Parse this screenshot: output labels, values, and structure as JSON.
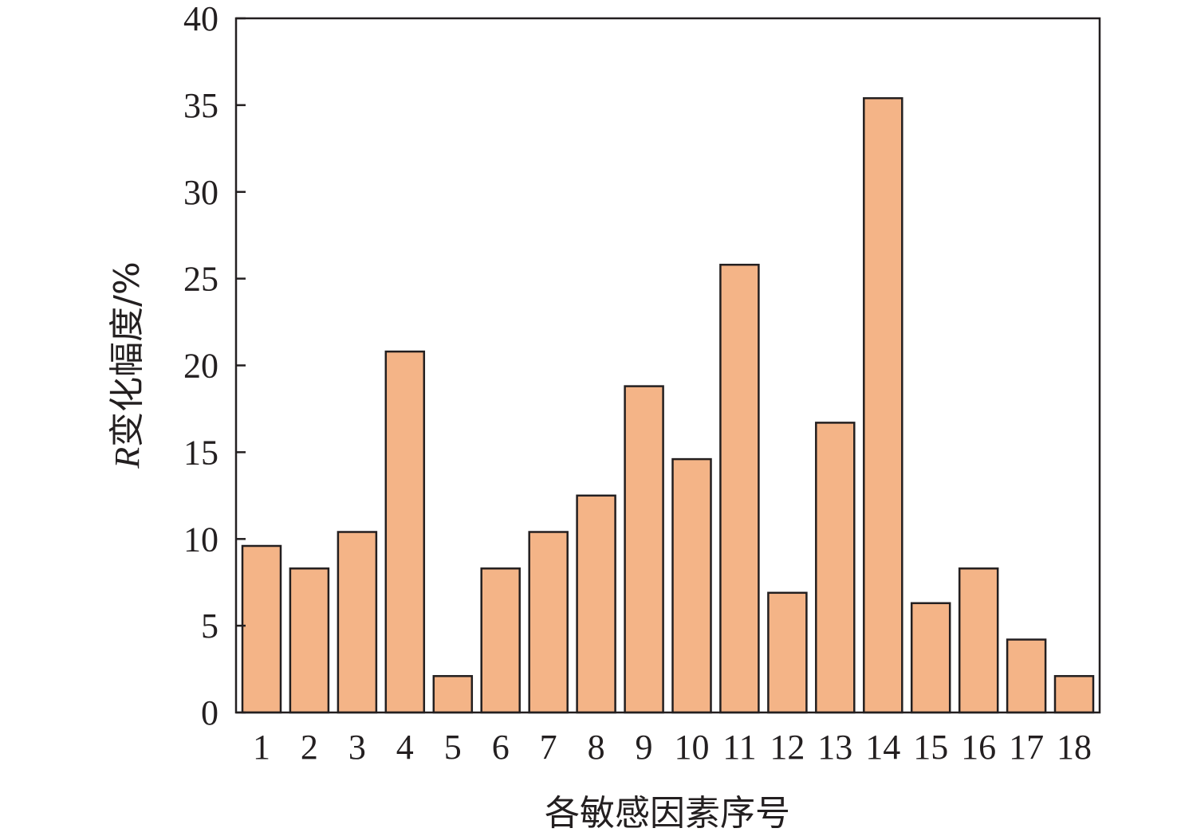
{
  "chart_data": {
    "type": "bar",
    "categories": [
      "1",
      "2",
      "3",
      "4",
      "5",
      "6",
      "7",
      "8",
      "9",
      "10",
      "11",
      "12",
      "13",
      "14",
      "15",
      "16",
      "17",
      "18"
    ],
    "values": [
      9.6,
      8.3,
      10.4,
      20.8,
      2.1,
      8.3,
      10.4,
      12.5,
      18.8,
      14.6,
      25.8,
      6.9,
      16.7,
      35.4,
      6.3,
      8.3,
      4.2,
      2.1
    ],
    "title": "",
    "xlabel": "各敏感因素序号",
    "ylabel_italic": "R",
    "ylabel_rest": "变化幅度/%",
    "ylim": [
      0,
      40
    ],
    "yticks": [
      "0",
      "5",
      "10",
      "15",
      "20",
      "25",
      "30",
      "35",
      "40"
    ],
    "ytick_values": [
      0,
      5,
      10,
      15,
      20,
      25,
      30,
      35,
      40
    ],
    "grid": false,
    "legend": "none",
    "bar_color": "#f4b487",
    "edge_color": "#231f20"
  }
}
